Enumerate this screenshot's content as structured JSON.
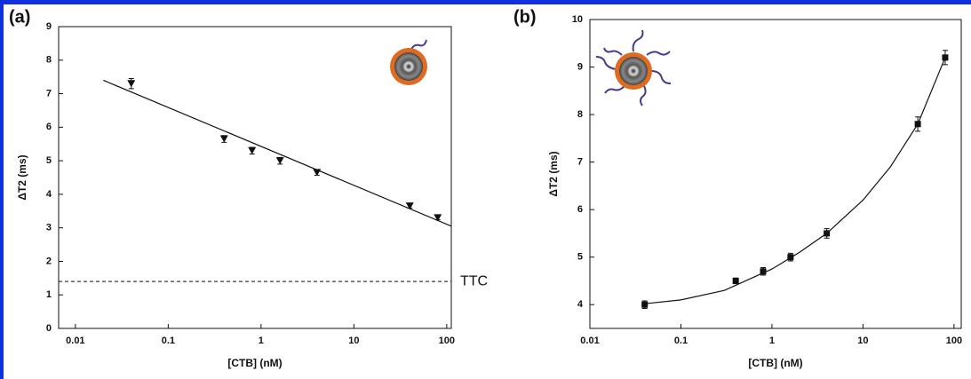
{
  "chart_data": [
    {
      "type": "scatter",
      "panel_label": "(a)",
      "xlabel": "[CTB] (nM)",
      "ylabel": "ΔT2 (ms)",
      "log_x": true,
      "xlim": [
        0.0066,
        112
      ],
      "ylim": [
        0,
        9
      ],
      "xticks": [
        0.01,
        0.1,
        1,
        10,
        100
      ],
      "yticks": [
        0,
        1,
        2,
        3,
        4,
        5,
        6,
        7,
        8,
        9
      ],
      "series": [
        {
          "kind": "points",
          "marker": "triangle-down",
          "color": "#111111",
          "x": [
            0.04,
            0.4,
            0.8,
            1.6,
            4,
            40,
            80
          ],
          "values": [
            7.3,
            5.65,
            5.3,
            5.0,
            4.65,
            3.65,
            3.3
          ],
          "errors": [
            0.15,
            0.1,
            0.1,
            0.1,
            0.08,
            0.06,
            0.06
          ]
        },
        {
          "kind": "line",
          "color": "#111111",
          "x": [
            0.02,
            112
          ],
          "values": [
            7.4,
            3.05
          ]
        }
      ],
      "hlines": [
        {
          "value": 1.4,
          "label": "TTC",
          "dash": true
        }
      ]
    },
    {
      "type": "scatter",
      "panel_label": "(b)",
      "xlabel": "[CTB] (nM)",
      "ylabel": "ΔT2 (ms)",
      "log_x": true,
      "xlim": [
        0.01,
        120
      ],
      "ylim": [
        3.5,
        10
      ],
      "xticks": [
        0.01,
        0.1,
        1,
        10,
        100
      ],
      "yticks": [
        4,
        5,
        6,
        7,
        8,
        9,
        10
      ],
      "series": [
        {
          "kind": "points",
          "marker": "square",
          "color": "#111111",
          "x": [
            0.04,
            0.4,
            0.8,
            1.6,
            4,
            40,
            80
          ],
          "values": [
            4.0,
            4.5,
            4.7,
            5.0,
            5.5,
            7.8,
            9.2
          ],
          "errors": [
            0.08,
            0.06,
            0.08,
            0.08,
            0.1,
            0.15,
            0.15
          ]
        },
        {
          "kind": "line",
          "color": "#111111",
          "x": [
            0.04,
            0.1,
            0.3,
            1,
            2,
            4,
            10,
            20,
            40,
            80
          ],
          "values": [
            4.02,
            4.1,
            4.3,
            4.75,
            5.1,
            5.5,
            6.2,
            6.9,
            7.8,
            9.2
          ]
        }
      ]
    }
  ]
}
